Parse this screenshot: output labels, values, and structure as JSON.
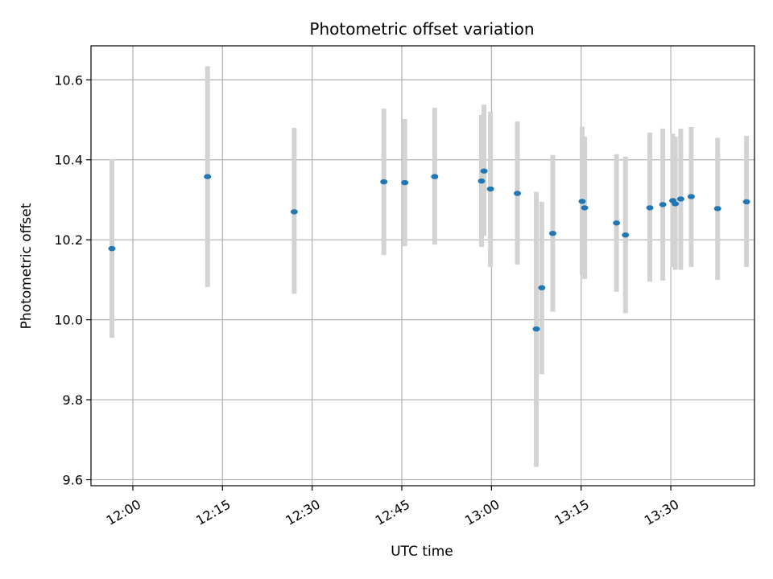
{
  "chart_data": {
    "type": "scatter",
    "title": "Photometric offset variation",
    "xlabel": "UTC time",
    "ylabel": "Photometric offset",
    "x_axis_type": "time",
    "xlim": [
      "11:53",
      "13:44"
    ],
    "ylim": [
      9.585,
      10.685
    ],
    "x_ticks": [
      "12:00",
      "12:15",
      "12:30",
      "12:45",
      "13:00",
      "13:15",
      "13:30"
    ],
    "y_ticks": [
      9.6,
      9.8,
      10.0,
      10.2,
      10.4,
      10.6
    ],
    "y_tick_labels": [
      "9.6",
      "9.8",
      "10.0",
      "10.2",
      "10.4",
      "10.6"
    ],
    "grid": true,
    "colors": {
      "marker": "#1f77b4",
      "error_bar": "#d3d3d3",
      "grid": "#b0b0b0"
    },
    "points": [
      {
        "t": "11:56:30",
        "y": 10.178,
        "lo": 9.955,
        "hi": 10.402
      },
      {
        "t": "12:12:30",
        "y": 10.358,
        "lo": 10.082,
        "hi": 10.634
      },
      {
        "t": "12:27:00",
        "y": 10.27,
        "lo": 10.065,
        "hi": 10.48
      },
      {
        "t": "12:42:00",
        "y": 10.345,
        "lo": 10.162,
        "hi": 10.528
      },
      {
        "t": "12:45:30",
        "y": 10.343,
        "lo": 10.184,
        "hi": 10.502
      },
      {
        "t": "12:50:30",
        "y": 10.358,
        "lo": 10.188,
        "hi": 10.53
      },
      {
        "t": "12:58:20",
        "y": 10.347,
        "lo": 10.182,
        "hi": 10.512
      },
      {
        "t": "12:58:45",
        "y": 10.372,
        "lo": 10.21,
        "hi": 10.538
      },
      {
        "t": "12:59:50",
        "y": 10.327,
        "lo": 10.132,
        "hi": 10.52
      },
      {
        "t": "13:04:20",
        "y": 10.316,
        "lo": 10.138,
        "hi": 10.496
      },
      {
        "t": "13:07:30",
        "y": 9.977,
        "lo": 9.632,
        "hi": 10.32
      },
      {
        "t": "13:08:25",
        "y": 10.08,
        "lo": 9.864,
        "hi": 10.295
      },
      {
        "t": "13:10:15",
        "y": 10.216,
        "lo": 10.02,
        "hi": 10.412
      },
      {
        "t": "13:15:10",
        "y": 10.296,
        "lo": 10.112,
        "hi": 10.483
      },
      {
        "t": "13:15:35",
        "y": 10.28,
        "lo": 10.102,
        "hi": 10.458
      },
      {
        "t": "13:20:55",
        "y": 10.242,
        "lo": 10.07,
        "hi": 10.414
      },
      {
        "t": "13:22:25",
        "y": 10.212,
        "lo": 10.016,
        "hi": 10.408
      },
      {
        "t": "13:26:30",
        "y": 10.28,
        "lo": 10.095,
        "hi": 10.468
      },
      {
        "t": "13:28:40",
        "y": 10.288,
        "lo": 10.098,
        "hi": 10.478
      },
      {
        "t": "13:30:20",
        "y": 10.298,
        "lo": 10.132,
        "hi": 10.465
      },
      {
        "t": "13:30:45",
        "y": 10.29,
        "lo": 10.125,
        "hi": 10.458
      },
      {
        "t": "13:31:40",
        "y": 10.302,
        "lo": 10.125,
        "hi": 10.478
      },
      {
        "t": "13:33:25",
        "y": 10.308,
        "lo": 10.132,
        "hi": 10.482
      },
      {
        "t": "13:37:50",
        "y": 10.278,
        "lo": 10.1,
        "hi": 10.455
      },
      {
        "t": "13:42:40",
        "y": 10.295,
        "lo": 10.132,
        "hi": 10.46
      }
    ]
  }
}
